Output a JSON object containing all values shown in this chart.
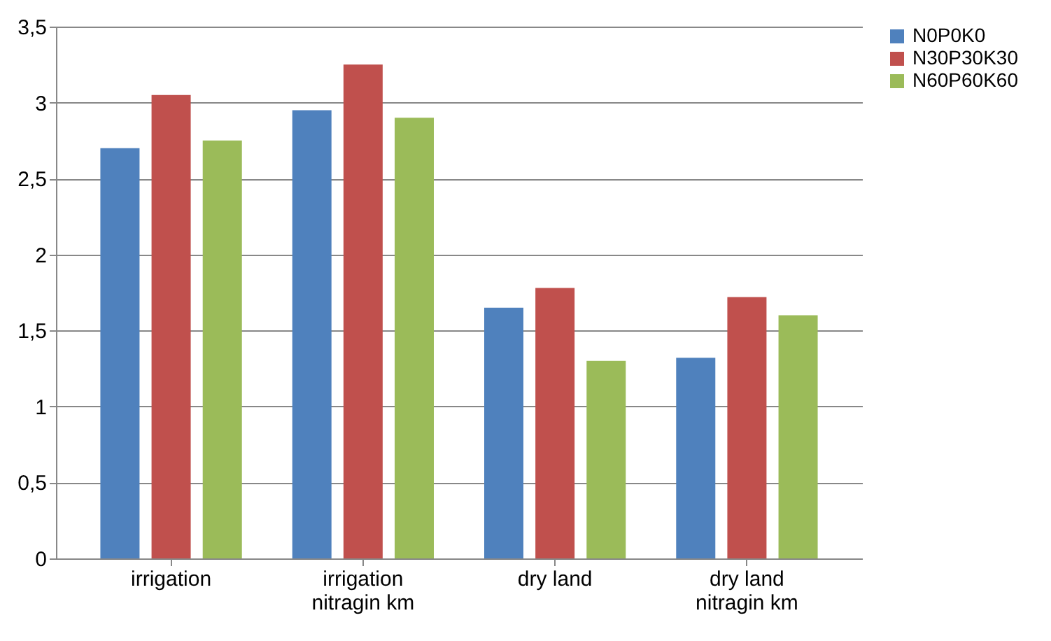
{
  "chart_data": {
    "type": "bar",
    "categories": [
      "irrigation",
      "irrigation\nnitragin km",
      "dry land",
      "dry land\nnitragin km"
    ],
    "series": [
      {
        "name": "N0P0K0",
        "color": "#4f81bd",
        "values": [
          2.7,
          2.95,
          1.65,
          1.32
        ]
      },
      {
        "name": "N30P30K30",
        "color": "#c0504d",
        "values": [
          3.05,
          3.25,
          1.78,
          1.72
        ]
      },
      {
        "name": "N60P60K60",
        "color": "#9bbb59",
        "values": [
          2.75,
          2.9,
          1.3,
          1.6
        ]
      }
    ],
    "ylim": [
      0,
      3.5
    ],
    "yticks": [
      {
        "value": 0,
        "label": "0"
      },
      {
        "value": 0.5,
        "label": "0,5"
      },
      {
        "value": 1,
        "label": "1"
      },
      {
        "value": 1.5,
        "label": "1,5"
      },
      {
        "value": 2,
        "label": "2"
      },
      {
        "value": 2.5,
        "label": "2,5"
      },
      {
        "value": 3,
        "label": "3"
      },
      {
        "value": 3.5,
        "label": "3,5"
      }
    ],
    "grid": "y",
    "legend": "right"
  }
}
